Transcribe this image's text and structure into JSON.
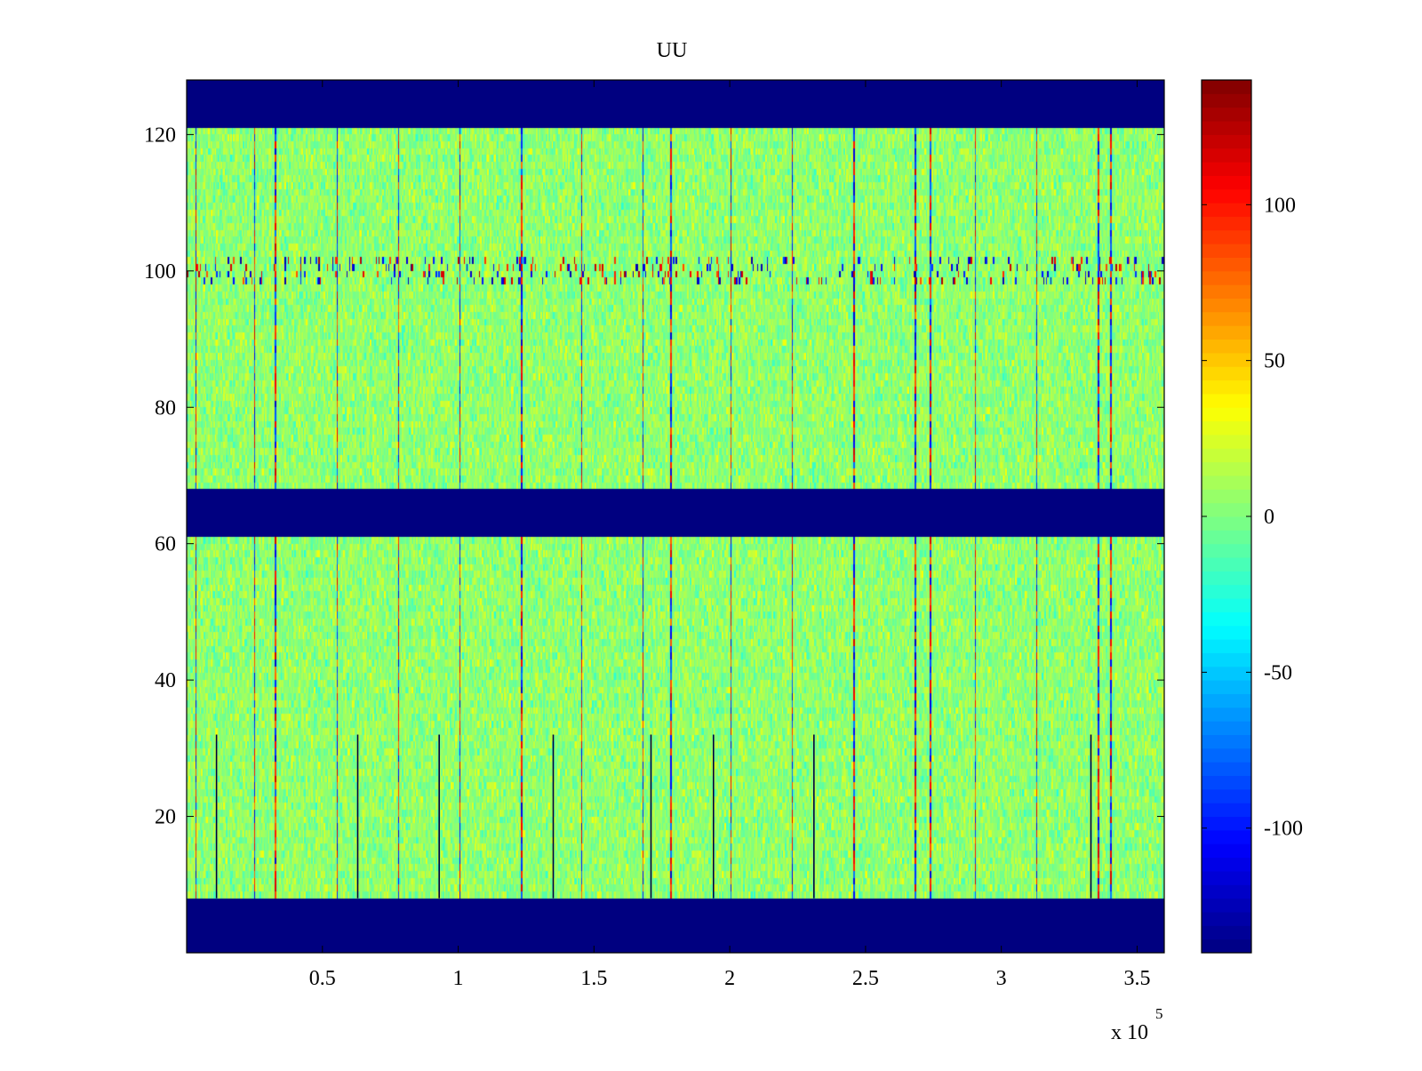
{
  "chart_data": {
    "type": "heatmap",
    "title": "UU",
    "xlabel": "",
    "ylabel": "",
    "xlim": [
      0,
      360000
    ],
    "ylim": [
      0,
      128
    ],
    "x_ticks": [
      50000,
      100000,
      150000,
      200000,
      250000,
      300000,
      350000
    ],
    "x_tick_labels": [
      "0.5",
      "1",
      "1.5",
      "2",
      "2.5",
      "3",
      "3.5"
    ],
    "x_exponent_label": "x 10",
    "x_exponent": "5",
    "y_ticks": [
      20,
      40,
      60,
      80,
      100,
      120
    ],
    "y_tick_labels": [
      "20",
      "40",
      "60",
      "80",
      "100",
      "120"
    ],
    "colormap": "jet",
    "color_limits": [
      -140,
      140
    ],
    "colorbar_ticks": [
      100,
      50,
      0,
      -50,
      -100
    ],
    "colorbar_tick_labels": [
      "100",
      "50",
      "0",
      "-50",
      "-100"
    ],
    "zero_rows": [
      [
        0,
        8
      ],
      [
        61,
        68
      ],
      [
        121,
        128
      ]
    ],
    "data_rows": [
      [
        8,
        61
      ],
      [
        68,
        121
      ]
    ],
    "background_value": 5,
    "strong_columns_x": [
      3500,
      25000,
      32500,
      55500,
      78000,
      100500,
      123000,
      145500,
      168000,
      178000,
      200500,
      223000,
      245500,
      268000,
      274000,
      290500,
      313000,
      335500,
      340000
    ],
    "dark_lines_x": [
      11000,
      63000,
      93000,
      135000,
      171000,
      194000,
      231000,
      333000
    ],
    "dark_lines_y": [
      8,
      32
    ],
    "noisy_row_y": [
      98,
      102
    ]
  }
}
